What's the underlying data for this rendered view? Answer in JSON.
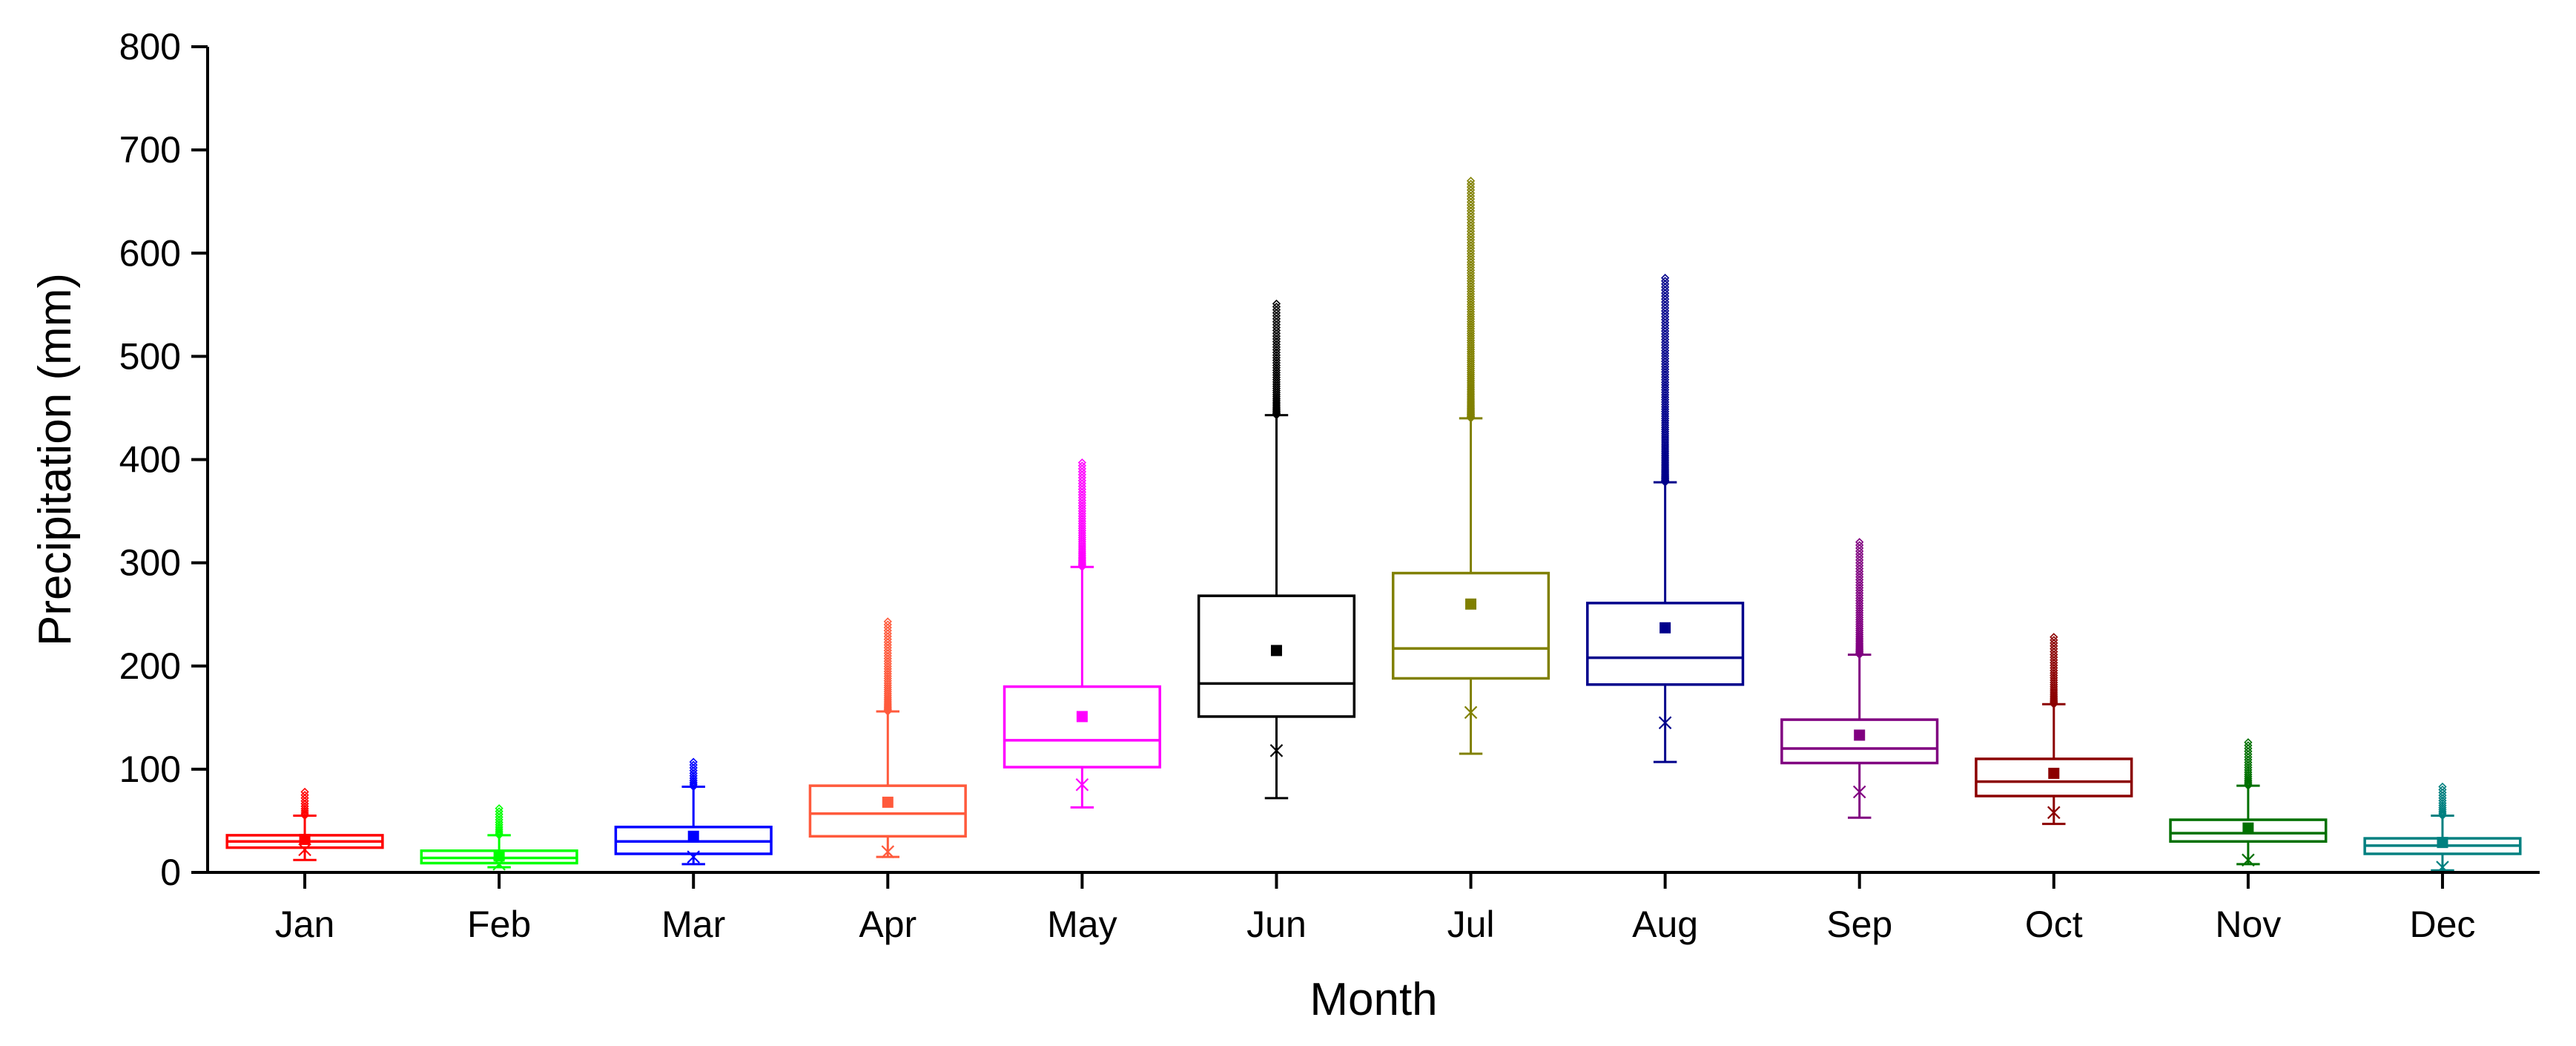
{
  "chart_data": {
    "type": "box",
    "title": "",
    "xlabel": "Month",
    "ylabel": "Precipitation (mm)",
    "ylim": [
      0,
      800
    ],
    "yticks": [
      0,
      100,
      200,
      300,
      400,
      500,
      600,
      700,
      800
    ],
    "grid": false,
    "categories": [
      "Jan",
      "Feb",
      "Mar",
      "Apr",
      "May",
      "Jun",
      "Jul",
      "Aug",
      "Sep",
      "Oct",
      "Nov",
      "Dec"
    ],
    "series": [
      {
        "name": "Jan",
        "color": "#ff0000",
        "whisker_low": 12,
        "q1": 24,
        "median": 30,
        "q3": 36,
        "whisker_high": 55,
        "mean": 32,
        "min_marker": 22,
        "outliers_from": 55,
        "outliers_to": 78
      },
      {
        "name": "Feb",
        "color": "#00ff00",
        "whisker_low": 5,
        "q1": 9,
        "median": 14,
        "q3": 21,
        "whisker_high": 36,
        "mean": 16,
        "min_marker": 8,
        "outliers_from": 36,
        "outliers_to": 62
      },
      {
        "name": "Mar",
        "color": "#0000ff",
        "whisker_low": 8,
        "q1": 18,
        "median": 30,
        "q3": 44,
        "whisker_high": 83,
        "mean": 35,
        "min_marker": 15,
        "outliers_from": 83,
        "outliers_to": 107
      },
      {
        "name": "Apr",
        "color": "#ff5a3c",
        "whisker_low": 15,
        "q1": 35,
        "median": 57,
        "q3": 84,
        "whisker_high": 156,
        "mean": 68,
        "min_marker": 20,
        "outliers_from": 156,
        "outliers_to": 243
      },
      {
        "name": "May",
        "color": "#ff00ff",
        "whisker_low": 63,
        "q1": 102,
        "median": 128,
        "q3": 180,
        "whisker_high": 296,
        "mean": 151,
        "min_marker": 85,
        "outliers_from": 296,
        "outliers_to": 397
      },
      {
        "name": "Jun",
        "color": "#000000",
        "whisker_low": 72,
        "q1": 151,
        "median": 183,
        "q3": 268,
        "whisker_high": 443,
        "mean": 215,
        "min_marker": 118,
        "outliers_from": 443,
        "outliers_to": 551
      },
      {
        "name": "Jul",
        "color": "#808000",
        "whisker_low": 115,
        "q1": 188,
        "median": 217,
        "q3": 290,
        "whisker_high": 440,
        "mean": 260,
        "min_marker": 155,
        "outliers_from": 440,
        "outliers_to": 670
      },
      {
        "name": "Aug",
        "color": "#00008b",
        "whisker_low": 107,
        "q1": 182,
        "median": 208,
        "q3": 261,
        "whisker_high": 378,
        "mean": 237,
        "min_marker": 145,
        "outliers_from": 378,
        "outliers_to": 576
      },
      {
        "name": "Sep",
        "color": "#800080",
        "whisker_low": 53,
        "q1": 106,
        "median": 120,
        "q3": 148,
        "whisker_high": 211,
        "mean": 133,
        "min_marker": 78,
        "outliers_from": 211,
        "outliers_to": 320
      },
      {
        "name": "Oct",
        "color": "#8b0000",
        "whisker_low": 47,
        "q1": 74,
        "median": 88,
        "q3": 110,
        "whisker_high": 163,
        "mean": 96,
        "min_marker": 58,
        "outliers_from": 163,
        "outliers_to": 228
      },
      {
        "name": "Nov",
        "color": "#007000",
        "whisker_low": 8,
        "q1": 30,
        "median": 38,
        "q3": 51,
        "whisker_high": 84,
        "mean": 43,
        "min_marker": 12,
        "outliers_from": 84,
        "outliers_to": 126
      },
      {
        "name": "Dec",
        "color": "#008080",
        "whisker_low": 2,
        "q1": 18,
        "median": 26,
        "q3": 33,
        "whisker_high": 55,
        "mean": 29,
        "min_marker": 5,
        "outliers_from": 55,
        "outliers_to": 83
      }
    ]
  }
}
